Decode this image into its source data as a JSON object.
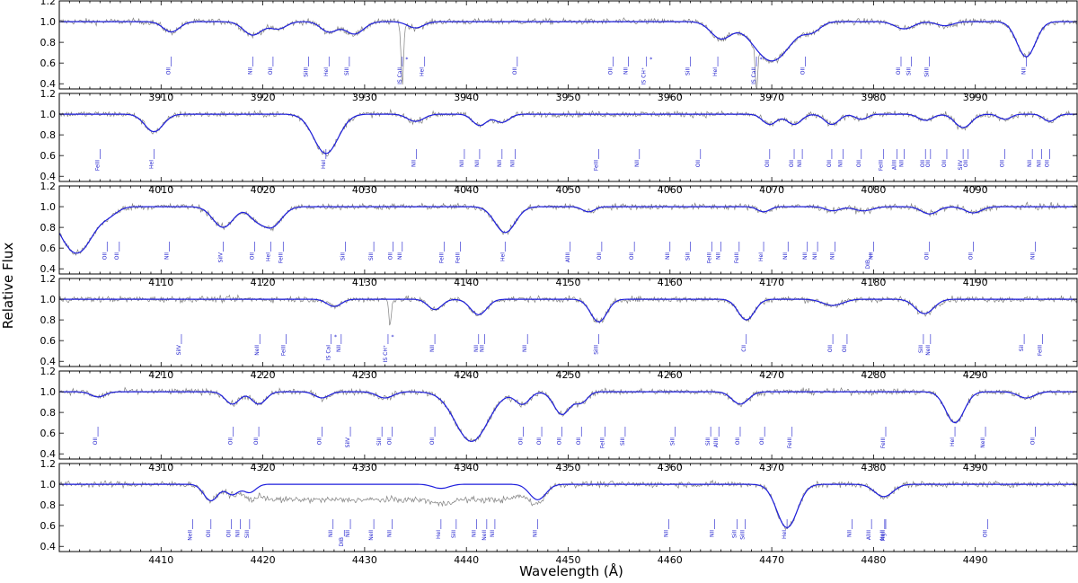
{
  "chart_data": {
    "type": "line",
    "xlabel": "Wavelength (Å)",
    "ylabel": "Relative Flux",
    "ylim": [
      0.35,
      1.2
    ],
    "yticks": [
      0.4,
      0.6,
      0.8,
      1.0,
      1.2
    ],
    "colors": {
      "observed": "#808080",
      "model": "#1f1fdd",
      "labels": "#1a1acc"
    },
    "panels": [
      {
        "xlim": [
          3900,
          4000
        ],
        "xticks": [
          3910,
          3920,
          3930,
          3940,
          3950,
          3960,
          3970,
          3980,
          3990
        ],
        "model_lines": [
          [
            3911,
            0.1,
            0.8
          ],
          [
            3919,
            0.13,
            0.9
          ],
          [
            3921.5,
            0.07,
            0.8
          ],
          [
            3926.5,
            0.1,
            0.8
          ],
          [
            3929,
            0.12,
            0.9
          ],
          [
            3935,
            0.06,
            0.8
          ],
          [
            3965,
            0.16,
            1.0
          ],
          [
            3970,
            0.38,
            1.8
          ],
          [
            3974,
            0.08,
            0.8
          ],
          [
            3983,
            0.07,
            0.9
          ],
          [
            3987,
            0.04,
            0.8
          ],
          [
            3995,
            0.34,
            0.9
          ]
        ],
        "is_lines": [
          [
            3933.7,
            0.6
          ],
          [
            3968.5,
            0.4
          ]
        ],
        "labels": [
          {
            "x": 3911.0,
            "text": "OII"
          },
          {
            "x": 3919.0,
            "text": "NII"
          },
          {
            "x": 3921.0,
            "text": "OII"
          },
          {
            "x": 3924.5,
            "text": "SiIII"
          },
          {
            "x": 3926.5,
            "text": "HeI"
          },
          {
            "x": 3928.5,
            "text": "SiII"
          },
          {
            "x": 3933.7,
            "text": "IS CaII",
            "star": true
          },
          {
            "x": 3935.9,
            "text": "HeI"
          },
          {
            "x": 3945.0,
            "text": "OII"
          },
          {
            "x": 3954.4,
            "text": "OII"
          },
          {
            "x": 3955.9,
            "text": "NII"
          },
          {
            "x": 3957.7,
            "text": "IS CH⁺",
            "star": true
          },
          {
            "x": 3962.0,
            "text": "SiII"
          },
          {
            "x": 3964.7,
            "text": "HeI"
          },
          {
            "x": 3968.5,
            "text": "IS CaII",
            "star": true
          },
          {
            "x": 3973.3,
            "text": "OII"
          },
          {
            "x": 3982.7,
            "text": "OII"
          },
          {
            "x": 3983.7,
            "text": "SiII"
          },
          {
            "x": 3985.5,
            "text": "SiIII"
          },
          {
            "x": 3995.0,
            "text": "NII"
          }
        ]
      },
      {
        "xlim": [
          4000,
          4100
        ],
        "xticks": [
          4010,
          4020,
          4030,
          4040,
          4050,
          4060,
          4070,
          4080,
          4090
        ],
        "model_lines": [
          [
            4009.3,
            0.17,
            0.9
          ],
          [
            4026.2,
            0.38,
            1.2
          ],
          [
            4035,
            0.07,
            0.8
          ],
          [
            4041.3,
            0.11,
            0.7
          ],
          [
            4043.5,
            0.08,
            0.7
          ],
          [
            4069.8,
            0.1,
            0.7
          ],
          [
            4072.2,
            0.1,
            0.7
          ],
          [
            4075.9,
            0.1,
            0.7
          ],
          [
            4078.8,
            0.05,
            0.6
          ],
          [
            4085.1,
            0.06,
            0.7
          ],
          [
            4088.8,
            0.13,
            0.8
          ],
          [
            4092.9,
            0.05,
            0.6
          ],
          [
            4097.3,
            0.07,
            0.6
          ]
        ],
        "labels": [
          {
            "x": 4004.0,
            "text": "FeIII"
          },
          {
            "x": 4009.3,
            "text": "HeI"
          },
          {
            "x": 4026.2,
            "text": "HeI"
          },
          {
            "x": 4035.1,
            "text": "NII"
          },
          {
            "x": 4039.8,
            "text": "NII"
          },
          {
            "x": 4041.3,
            "text": "NII"
          },
          {
            "x": 4043.5,
            "text": "NII"
          },
          {
            "x": 4044.8,
            "text": "NII"
          },
          {
            "x": 4053.0,
            "text": "FeIII"
          },
          {
            "x": 4057.0,
            "text": "NII"
          },
          {
            "x": 4063.0,
            "text": "OII"
          },
          {
            "x": 4069.8,
            "text": "OII"
          },
          {
            "x": 4072.2,
            "text": "OII"
          },
          {
            "x": 4073.0,
            "text": "NII"
          },
          {
            "x": 4075.9,
            "text": "OII"
          },
          {
            "x": 4077.0,
            "text": "NII"
          },
          {
            "x": 4078.8,
            "text": "OII"
          },
          {
            "x": 4081.0,
            "text": "FeIII"
          },
          {
            "x": 4082.3,
            "text": "AlIII"
          },
          {
            "x": 4083.0,
            "text": "NII"
          },
          {
            "x": 4085.1,
            "text": "OII"
          },
          {
            "x": 4085.6,
            "text": "OII"
          },
          {
            "x": 4087.2,
            "text": "OII"
          },
          {
            "x": 4088.8,
            "text": "SiIV"
          },
          {
            "x": 4089.3,
            "text": "OII"
          },
          {
            "x": 4092.9,
            "text": "OII"
          },
          {
            "x": 4095.6,
            "text": "NII"
          },
          {
            "x": 4096.5,
            "text": "NII"
          },
          {
            "x": 4097.3,
            "text": "OII"
          }
        ]
      },
      {
        "xlim": [
          4100,
          4200
        ],
        "xticks": [
          4110,
          4120,
          4130,
          4140,
          4150,
          4160,
          4170,
          4180,
          4190
        ],
        "model_lines": [
          [
            4101.7,
            0.45,
            1.6
          ],
          [
            4105,
            0.05,
            0.8
          ],
          [
            4116.1,
            0.2,
            1.0
          ],
          [
            4119.2,
            0.08,
            0.7
          ],
          [
            4120.8,
            0.2,
            1.0
          ],
          [
            4143.8,
            0.25,
            1.0
          ],
          [
            4152,
            0.05,
            0.6
          ],
          [
            4169.2,
            0.05,
            0.6
          ],
          [
            4176,
            0.04,
            0.7
          ],
          [
            4179,
            0.04,
            0.9
          ],
          [
            4185.5,
            0.07,
            0.8
          ],
          [
            4189.8,
            0.06,
            0.8
          ]
        ],
        "labels": [
          {
            "x": 4104.7,
            "text": "OII"
          },
          {
            "x": 4105.9,
            "text": "OII"
          },
          {
            "x": 4110.8,
            "text": "NII"
          },
          {
            "x": 4116.1,
            "text": "SiIV"
          },
          {
            "x": 4119.2,
            "text": "OII"
          },
          {
            "x": 4120.8,
            "text": "HeI"
          },
          {
            "x": 4122.0,
            "text": "FeIII"
          },
          {
            "x": 4128.1,
            "text": "SiII"
          },
          {
            "x": 4130.9,
            "text": "SiII"
          },
          {
            "x": 4132.8,
            "text": "OII"
          },
          {
            "x": 4133.7,
            "text": "NII"
          },
          {
            "x": 4137.8,
            "text": "FeIII"
          },
          {
            "x": 4139.4,
            "text": "FeIII"
          },
          {
            "x": 4143.8,
            "text": "HeI"
          },
          {
            "x": 4150.2,
            "text": "AlIII"
          },
          {
            "x": 4153.3,
            "text": "OII"
          },
          {
            "x": 4156.5,
            "text": "OII"
          },
          {
            "x": 4160.0,
            "text": "NII"
          },
          {
            "x": 4162.0,
            "text": "SiII"
          },
          {
            "x": 4164.1,
            "text": "FeIII"
          },
          {
            "x": 4165.0,
            "text": "NII"
          },
          {
            "x": 4166.8,
            "text": "FeIII"
          },
          {
            "x": 4169.2,
            "text": "HeI"
          },
          {
            "x": 4171.6,
            "text": "NII"
          },
          {
            "x": 4173.5,
            "text": "NII"
          },
          {
            "x": 4174.5,
            "text": "NII"
          },
          {
            "x": 4176.2,
            "text": "NII"
          },
          {
            "x": 4179.7,
            "text": "DIB"
          },
          {
            "x": 4180.0,
            "text": "NII"
          },
          {
            "x": 4185.5,
            "text": "OII"
          },
          {
            "x": 4189.8,
            "text": "OII"
          },
          {
            "x": 4195.9,
            "text": "NII"
          }
        ]
      },
      {
        "xlim": [
          4200,
          4300
        ],
        "xticks": [
          4210,
          4220,
          4230,
          4240,
          4250,
          4260,
          4270,
          4280,
          4290
        ],
        "model_lines": [
          [
            4227,
            0.07,
            0.7
          ],
          [
            4236.9,
            0.1,
            0.7
          ],
          [
            4241.2,
            0.15,
            0.8
          ],
          [
            4253,
            0.22,
            0.8
          ],
          [
            4267.5,
            0.2,
            0.8
          ],
          [
            4276,
            0.06,
            1.0
          ],
          [
            4285,
            0.14,
            0.9
          ]
        ],
        "is_lines": [
          [
            4232.5,
            0.25
          ]
        ],
        "labels": [
          {
            "x": 4212.0,
            "text": "SiIV"
          },
          {
            "x": 4219.7,
            "text": "NeII"
          },
          {
            "x": 4222.3,
            "text": "FeIII"
          },
          {
            "x": 4226.7,
            "text": "IS CaI",
            "star": true
          },
          {
            "x": 4227.7,
            "text": "NII"
          },
          {
            "x": 4232.3,
            "text": "IS CH⁺",
            "star": true
          },
          {
            "x": 4236.9,
            "text": "NII"
          },
          {
            "x": 4241.2,
            "text": "NII"
          },
          {
            "x": 4241.8,
            "text": "NII"
          },
          {
            "x": 4246.0,
            "text": "NII"
          },
          {
            "x": 4253.0,
            "text": "SiIII"
          },
          {
            "x": 4267.5,
            "text": "CII"
          },
          {
            "x": 4276.0,
            "text": "OII"
          },
          {
            "x": 4277.4,
            "text": "OII"
          },
          {
            "x": 4284.9,
            "text": "SiII"
          },
          {
            "x": 4285.6,
            "text": "NeII"
          },
          {
            "x": 4294.8,
            "text": "SiI"
          },
          {
            "x": 4296.6,
            "text": "FeIII"
          }
        ]
      },
      {
        "xlim": [
          4300,
          4400
        ],
        "xticks": [
          4310,
          4320,
          4330,
          4340,
          4350,
          4360,
          4370,
          4380,
          4390
        ],
        "model_lines": [
          [
            4303.8,
            0.05,
            0.7
          ],
          [
            4317,
            0.12,
            0.7
          ],
          [
            4319.6,
            0.12,
            0.7
          ],
          [
            4325.8,
            0.06,
            0.7
          ],
          [
            4332,
            0.06,
            0.8
          ],
          [
            4340.5,
            0.48,
            1.6
          ],
          [
            4345.5,
            0.12,
            0.7
          ],
          [
            4349.4,
            0.22,
            0.8
          ],
          [
            4351.3,
            0.1,
            0.6
          ],
          [
            4366.9,
            0.12,
            0.8
          ],
          [
            4388,
            0.3,
            0.9
          ],
          [
            4395,
            0.06,
            0.8
          ]
        ],
        "labels": [
          {
            "x": 4303.8,
            "text": "OII"
          },
          {
            "x": 4317.1,
            "text": "OII"
          },
          {
            "x": 4319.6,
            "text": "OII"
          },
          {
            "x": 4325.8,
            "text": "OII"
          },
          {
            "x": 4328.6,
            "text": "SiIV"
          },
          {
            "x": 4331.7,
            "text": "SiII"
          },
          {
            "x": 4332.7,
            "text": "OII"
          },
          {
            "x": 4336.9,
            "text": "OII"
          },
          {
            "x": 4345.6,
            "text": "OII"
          },
          {
            "x": 4347.4,
            "text": "OII"
          },
          {
            "x": 4349.4,
            "text": "OII"
          },
          {
            "x": 4351.3,
            "text": "OII"
          },
          {
            "x": 4353.6,
            "text": "FeIII"
          },
          {
            "x": 4355.6,
            "text": "SiII"
          },
          {
            "x": 4360.5,
            "text": "SiII"
          },
          {
            "x": 4364.0,
            "text": "SiII"
          },
          {
            "x": 4364.8,
            "text": "AlIII"
          },
          {
            "x": 4366.9,
            "text": "OII"
          },
          {
            "x": 4369.3,
            "text": "OII"
          },
          {
            "x": 4372.0,
            "text": "FeIII"
          },
          {
            "x": 4381.2,
            "text": "FeIII"
          },
          {
            "x": 4388.0,
            "text": "HeI"
          },
          {
            "x": 4391.0,
            "text": "NeII"
          },
          {
            "x": 4395.9,
            "text": "OII"
          }
        ]
      },
      {
        "xlim": [
          4400,
          4500
        ],
        "xticks": [
          4410,
          4420,
          4430,
          4440,
          4450,
          4460,
          4470,
          4480,
          4490
        ],
        "model_lines": [
          [
            4414.9,
            0.16,
            0.7
          ],
          [
            4417,
            0.1,
            0.6
          ],
          [
            4418.7,
            0.08,
            0.6
          ],
          [
            4437.5,
            0.04,
            0.8
          ],
          [
            4447,
            0.15,
            0.8
          ],
          [
            4471.5,
            0.42,
            1.0
          ],
          [
            4481,
            0.12,
            0.9
          ]
        ],
        "obs_depressions": [
          [
            4420,
            4445,
            0.15
          ]
        ],
        "labels": [
          {
            "x": 4413.1,
            "text": "NeII"
          },
          {
            "x": 4414.9,
            "text": "OII"
          },
          {
            "x": 4416.9,
            "text": "OII"
          },
          {
            "x": 4417.8,
            "text": "NII"
          },
          {
            "x": 4418.7,
            "text": "SiII"
          },
          {
            "x": 4426.9,
            "text": "NII"
          },
          {
            "x": 4428.0,
            "text": "DIB"
          },
          {
            "x": 4428.6,
            "text": "NII"
          },
          {
            "x": 4430.9,
            "text": "NeII"
          },
          {
            "x": 4432.7,
            "text": "NII"
          },
          {
            "x": 4437.5,
            "text": "HeI"
          },
          {
            "x": 4439.0,
            "text": "SiII"
          },
          {
            "x": 4441.0,
            "text": "NII"
          },
          {
            "x": 4442.0,
            "text": "NeII"
          },
          {
            "x": 4442.8,
            "text": "NII"
          },
          {
            "x": 4447.0,
            "text": "NII"
          },
          {
            "x": 4459.9,
            "text": "NII"
          },
          {
            "x": 4464.4,
            "text": "NII"
          },
          {
            "x": 4466.6,
            "text": "SiII"
          },
          {
            "x": 4467.4,
            "text": "SiIII"
          },
          {
            "x": 4471.5,
            "text": "HeI"
          },
          {
            "x": 4477.9,
            "text": "NII"
          },
          {
            "x": 4479.8,
            "text": "AlIII"
          },
          {
            "x": 4481.1,
            "text": "NeII"
          },
          {
            "x": 4481.2,
            "text": "MgII"
          },
          {
            "x": 4491.2,
            "text": "OII"
          }
        ]
      }
    ]
  }
}
